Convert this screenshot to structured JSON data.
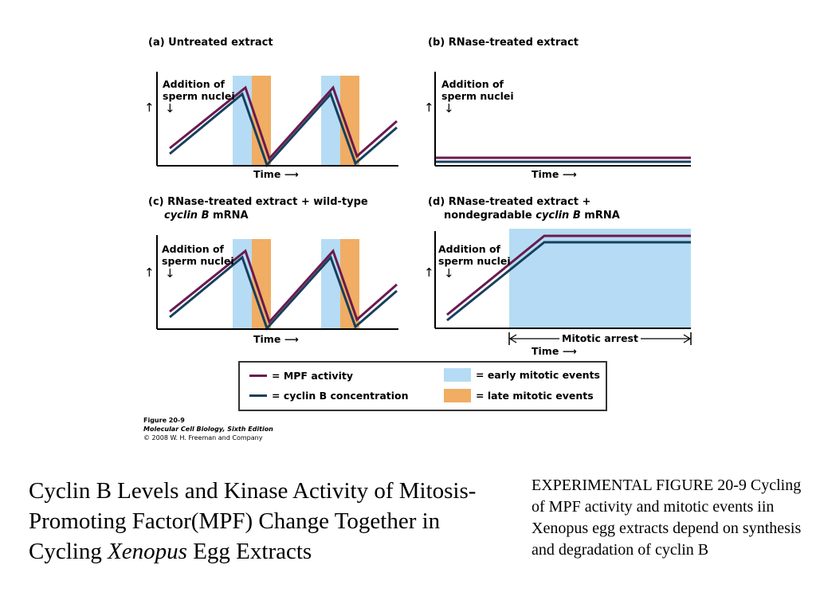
{
  "colors": {
    "mpf": "#6b1a4e",
    "cyclin": "#17405e",
    "early": "#b5dcf4",
    "late": "#f0ad63",
    "axis": "#000000"
  },
  "panels": {
    "a": {
      "title": "(a) Untreated extract",
      "addition": "Addition of\nsperm nuclei",
      "time": "Time"
    },
    "b": {
      "title": "(b) RNase-treated extract",
      "addition": "Addition of\nsperm nuclei",
      "time": "Time"
    },
    "c": {
      "title_line1": "(c) RNase-treated extract + wild-type",
      "title_line2_italic": "cyclin B",
      "title_line2_rest": " mRNA",
      "addition": "Addition of\nsperm nuclei",
      "time": "Time"
    },
    "d": {
      "title_line1": "(d) RNase-treated extract +",
      "title_line2_pre": "nondegradable ",
      "title_line2_italic": "cyclin B",
      "title_line2_rest": " mRNA",
      "addition": "Addition of\nsperm nuclei",
      "time": "Time",
      "arrest": "Mitotic arrest"
    }
  },
  "legend": {
    "mpf": "= MPF activity",
    "cyclin": "= cyclin B concentration",
    "early": "= early mitotic events",
    "late": "= late mitotic events"
  },
  "credit": {
    "line1": "Figure 20-9",
    "line2": "Molecular Cell Biology, Sixth Edition",
    "line3": "© 2008 W. H. Freeman and Company"
  },
  "slide": {
    "title_pre": "Cyclin B Levels and Kinase Activity of Mitosis-Promoting Factor(MPF) Change Together in Cycling ",
    "title_italic": "Xenopus",
    "title_post": " Egg Extracts",
    "caption": "EXPERIMENTAL FIGURE 20-9 Cycling of MPF activity and mitotic events iin Xenopus egg extracts depend on synthesis and degradation of cyclin B"
  }
}
